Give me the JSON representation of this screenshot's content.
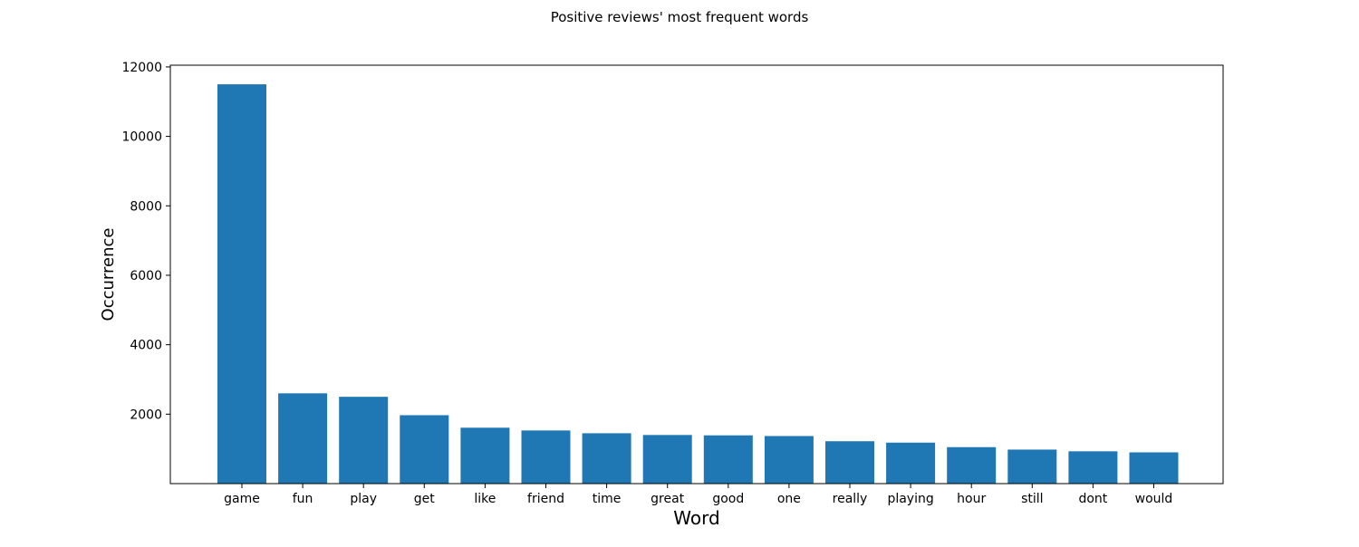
{
  "chart_data": {
    "type": "bar",
    "title": "Positive reviews' most frequent words",
    "xlabel": "Word",
    "ylabel": "Occurrence",
    "categories": [
      "game",
      "fun",
      "play",
      "get",
      "like",
      "friend",
      "time",
      "great",
      "good",
      "one",
      "really",
      "playing",
      "hour",
      "still",
      "dont",
      "would"
    ],
    "values": [
      11500,
      2600,
      2500,
      1970,
      1610,
      1530,
      1450,
      1400,
      1390,
      1370,
      1220,
      1180,
      1050,
      980,
      930,
      900
    ],
    "ylim": [
      0,
      12050
    ],
    "yticks": [
      2000,
      4000,
      6000,
      8000,
      10000,
      12000
    ],
    "grid": false,
    "legend": "none",
    "bar_color": "#1f77b4"
  }
}
